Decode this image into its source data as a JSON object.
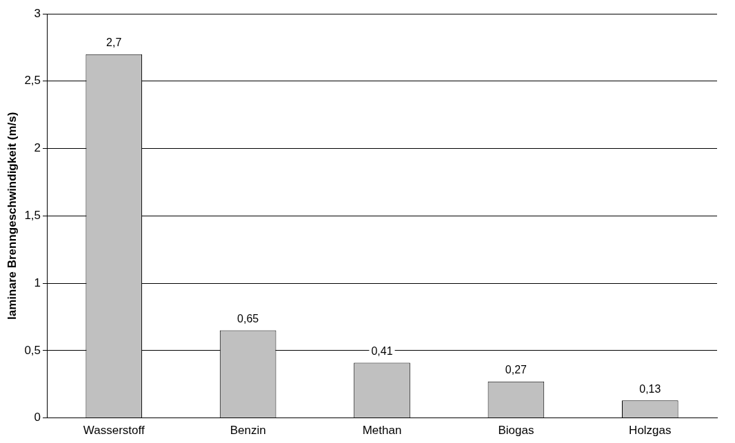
{
  "chart_data": {
    "type": "bar",
    "ylabel": "laminare Brenngeschwindigkeit (m/s)",
    "categories": [
      "Wasserstoff",
      "Benzin",
      "Methan",
      "Biogas",
      "Holzgas"
    ],
    "values": [
      2.7,
      0.65,
      0.41,
      0.27,
      0.13
    ],
    "value_labels": [
      "2,7",
      "0,65",
      "0,41",
      "0,27",
      "0,13"
    ],
    "color": "#c0c0c0",
    "ylim": [
      0,
      3
    ],
    "yticks": [
      0,
      {
        "value": 0.5,
        "label": "0,5"
      },
      1,
      {
        "value": 1.5,
        "label": "1,5"
      },
      2,
      {
        "value": 2.5,
        "label": "2,5"
      },
      3
    ],
    "grid": "y",
    "legend": false
  }
}
